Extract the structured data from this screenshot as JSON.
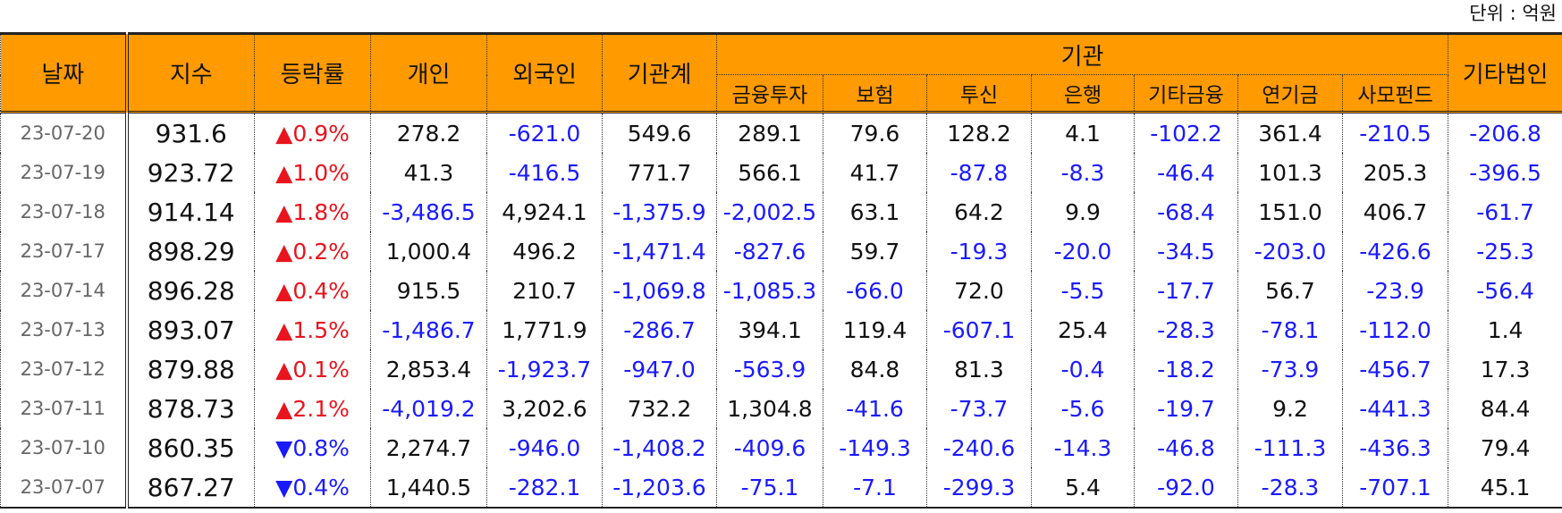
{
  "unit": "단위 : 억원",
  "header": {
    "columns": [
      "날짜",
      "지수",
      "등락률",
      "개인",
      "외국인",
      "기관계"
    ],
    "group": "기관",
    "group_columns": [
      "금융투자",
      "보험",
      "투신",
      "은행",
      "기타금융",
      "연기금",
      "사모펀드"
    ],
    "last": "기타법인"
  },
  "table": {
    "rows": [
      [
        "23-07-20",
        "931.6",
        "▲0.9%",
        "278.2",
        "-621.0",
        "549.6",
        "289.1",
        "79.6",
        "128.2",
        "4.1",
        "-102.2",
        "361.4",
        "-210.5",
        "-206.8"
      ],
      [
        "23-07-19",
        "923.72",
        "▲1.0%",
        "41.3",
        "-416.5",
        "771.7",
        "566.1",
        "41.7",
        "-87.8",
        "-8.3",
        "-46.4",
        "101.3",
        "205.3",
        "-396.5"
      ],
      [
        "23-07-18",
        "914.14",
        "▲1.8%",
        "-3,486.5",
        "4,924.1",
        "-1,375.9",
        "-2,002.5",
        "63.1",
        "64.2",
        "9.9",
        "-68.4",
        "151.0",
        "406.7",
        "-61.7"
      ],
      [
        "23-07-17",
        "898.29",
        "▲0.2%",
        "1,000.4",
        "496.2",
        "-1,471.4",
        "-827.6",
        "59.7",
        "-19.3",
        "-20.0",
        "-34.5",
        "-203.0",
        "-426.6",
        "-25.3"
      ],
      [
        "23-07-14",
        "896.28",
        "▲0.4%",
        "915.5",
        "210.7",
        "-1,069.8",
        "-1,085.3",
        "-66.0",
        "72.0",
        "-5.5",
        "-17.7",
        "56.7",
        "-23.9",
        "-56.4"
      ],
      [
        "23-07-13",
        "893.07",
        "▲1.5%",
        "-1,486.7",
        "1,771.9",
        "-286.7",
        "394.1",
        "119.4",
        "-607.1",
        "25.4",
        "-28.3",
        "-78.1",
        "-112.0",
        "1.4"
      ],
      [
        "23-07-12",
        "879.88",
        "▲0.1%",
        "2,853.4",
        "-1,923.7",
        "-947.0",
        "-563.9",
        "84.8",
        "81.3",
        "-0.4",
        "-18.2",
        "-73.9",
        "-456.7",
        "17.3"
      ],
      [
        "23-07-11",
        "878.73",
        "▲2.1%",
        "-4,019.2",
        "3,202.6",
        "732.2",
        "1,304.8",
        "-41.6",
        "-73.7",
        "-5.6",
        "-19.7",
        "9.2",
        "-441.3",
        "84.4"
      ],
      [
        "23-07-10",
        "860.35",
        "▼0.8%",
        "2,274.7",
        "-946.0",
        "-1,408.2",
        "-409.6",
        "-149.3",
        "-240.6",
        "-14.3",
        "-46.8",
        "-111.3",
        "-436.3",
        "79.4"
      ],
      [
        "23-07-07",
        "867.27",
        "▼0.4%",
        "1,440.5",
        "-282.1",
        "-1,203.6",
        "-75.1",
        "-7.1",
        "-299.3",
        "5.4",
        "-92.0",
        "-28.3",
        "-707.1",
        "45.1"
      ]
    ]
  }
}
